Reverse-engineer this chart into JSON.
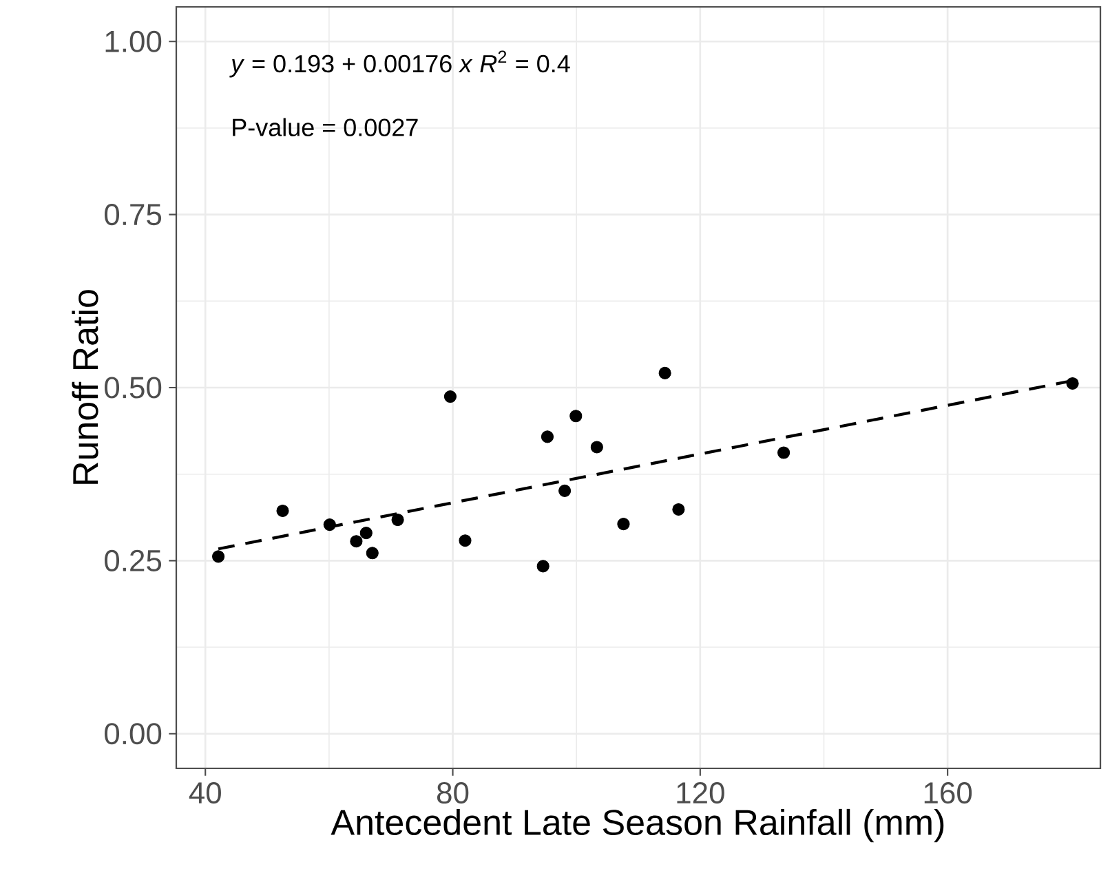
{
  "chart_data": {
    "type": "scatter",
    "xlabel": "Antecedent Late Season Rainfall (mm)",
    "ylabel": "Runoff Ratio",
    "annotations": [
      "*y* = 0.193 + 0.00176 *x* *R*$^{2}$ = 0.4",
      "P-value = 0.0027"
    ],
    "xlim": [
      35.3,
      184.7
    ],
    "ylim": [
      -0.05,
      1.05
    ],
    "xticks": [
      40,
      80,
      120,
      160
    ],
    "yticks": [
      {
        "value": 0,
        "label": "0.00"
      },
      {
        "value": 0.25,
        "label": "0.25"
      },
      {
        "value": 0.5,
        "label": "0.50"
      },
      {
        "value": 0.75,
        "label": "0.75"
      },
      {
        "value": 1,
        "label": "1.00"
      }
    ],
    "grid": true,
    "marker": "circle",
    "series": [
      {
        "color": "#000000",
        "x": [
          42.1,
          52.5,
          60.1,
          64.4,
          66.0,
          67.0,
          71.1,
          79.6,
          82.0,
          94.6,
          95.3,
          98.1,
          99.9,
          103.3,
          107.6,
          114.3,
          116.5,
          133.5,
          180.2
        ],
        "values": [
          0.256,
          0.322,
          0.302,
          0.278,
          0.29,
          0.261,
          0.309,
          0.487,
          0.279,
          0.242,
          0.429,
          0.351,
          0.459,
          0.414,
          0.303,
          0.521,
          0.324,
          0.406,
          0.506
        ]
      },
      {
        "type": "line",
        "color": "#000000",
        "marker": "none",
        "line_style": "dashed",
        "x": [
          42.1,
          180.2
        ],
        "values": [
          0.267,
          0.51
        ]
      }
    ]
  }
}
